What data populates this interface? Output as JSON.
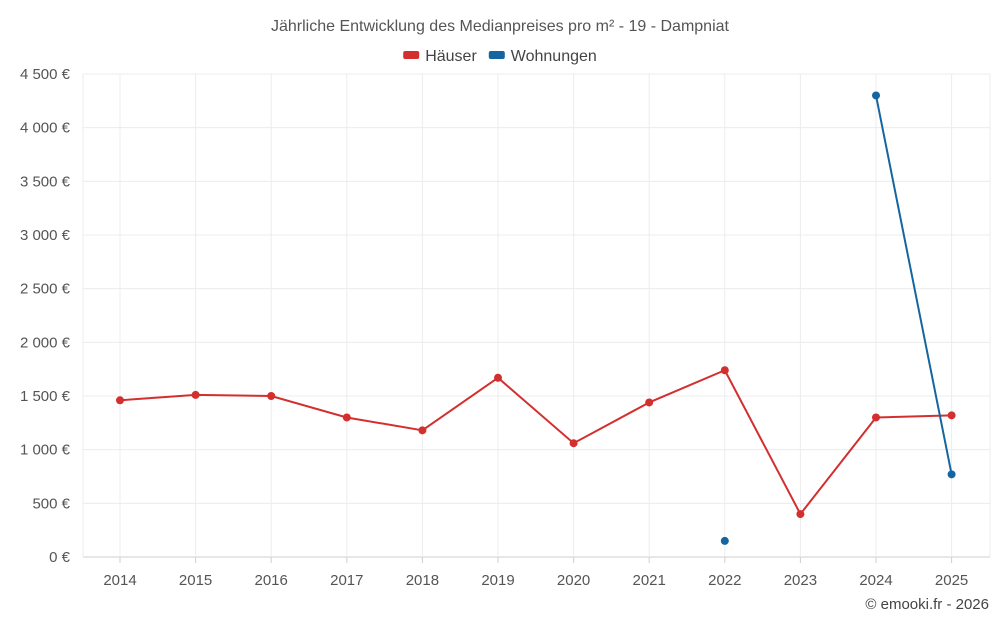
{
  "chart_data": {
    "type": "line",
    "title": "Jährliche Entwicklung des Medianpreises pro m² - 19 - Dampniat",
    "x": [
      "2014",
      "2015",
      "2016",
      "2017",
      "2018",
      "2019",
      "2020",
      "2021",
      "2022",
      "2023",
      "2024",
      "2025"
    ],
    "y_ticks": [
      "0 €",
      "500 €",
      "1 000 €",
      "1 500 €",
      "2 000 €",
      "2 500 €",
      "3 000 €",
      "3 500 €",
      "4 000 €",
      "4 500 €"
    ],
    "ylim": [
      0,
      4500
    ],
    "grid": true,
    "legend_position": "top-center",
    "series": [
      {
        "name": "Häuser",
        "color": "#d32f2f",
        "values": [
          1460,
          1510,
          1500,
          1300,
          1180,
          1670,
          1060,
          1440,
          1740,
          400,
          1300,
          1320
        ]
      },
      {
        "name": "Wohnungen",
        "color": "#1565a0",
        "values": [
          null,
          null,
          null,
          null,
          null,
          null,
          null,
          null,
          150,
          null,
          4300,
          770
        ]
      }
    ]
  },
  "credit": "© emooki.fr - 2026"
}
